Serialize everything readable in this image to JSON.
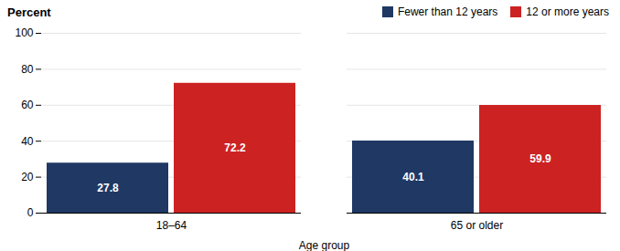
{
  "chart_data": {
    "type": "bar",
    "categories": [
      "18–64",
      "65 or older"
    ],
    "series": [
      {
        "name": "Fewer than 12 years",
        "color": "#1f3864",
        "values": [
          27.8,
          40.1
        ]
      },
      {
        "name": "12 or more years",
        "color": "#cc2222",
        "values": [
          72.2,
          59.9
        ]
      }
    ],
    "xlabel": "Age group",
    "ylabel": "Percent",
    "ylim": [
      0,
      100
    ],
    "yticks": [
      0,
      20,
      40,
      60,
      80,
      100
    ],
    "grid": true,
    "legend": "upper right",
    "data_labels": true
  }
}
